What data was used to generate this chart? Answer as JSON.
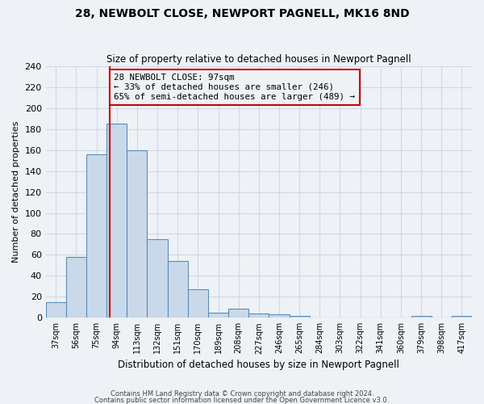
{
  "title": "28, NEWBOLT CLOSE, NEWPORT PAGNELL, MK16 8ND",
  "subtitle": "Size of property relative to detached houses in Newport Pagnell",
  "xlabel": "Distribution of detached houses by size in Newport Pagnell",
  "ylabel": "Number of detached properties",
  "bar_labels": [
    "37sqm",
    "56sqm",
    "75sqm",
    "94sqm",
    "113sqm",
    "132sqm",
    "151sqm",
    "170sqm",
    "189sqm",
    "208sqm",
    "227sqm",
    "246sqm",
    "265sqm",
    "284sqm",
    "303sqm",
    "322sqm",
    "341sqm",
    "360sqm",
    "379sqm",
    "398sqm",
    "417sqm"
  ],
  "bar_values": [
    15,
    58,
    156,
    185,
    160,
    75,
    54,
    27,
    5,
    9,
    4,
    3,
    2,
    0,
    0,
    0,
    0,
    0,
    2,
    0,
    2
  ],
  "bar_color": "#cad9ea",
  "bar_edge_color": "#5b8db8",
  "vline_color": "#cc0000",
  "annotation_title": "28 NEWBOLT CLOSE: 97sqm",
  "annotation_line1": "← 33% of detached houses are smaller (246)",
  "annotation_line2": "65% of semi-detached houses are larger (489) →",
  "annotation_box_color": "#cc0000",
  "ylim": [
    0,
    240
  ],
  "yticks": [
    0,
    20,
    40,
    60,
    80,
    100,
    120,
    140,
    160,
    180,
    200,
    220,
    240
  ],
  "footer1": "Contains HM Land Registry data © Crown copyright and database right 2024.",
  "footer2": "Contains public sector information licensed under the Open Government Licence v3.0.",
  "bg_color": "#eef2f7",
  "grid_color": "#d0d8e4"
}
